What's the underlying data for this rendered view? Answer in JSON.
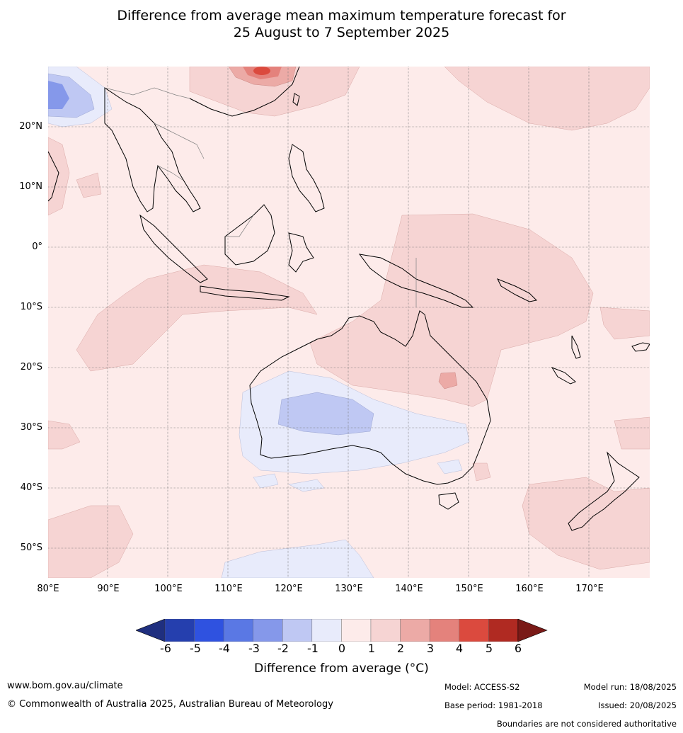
{
  "title_line1": "Difference from average mean maximum temperature forecast for",
  "title_line2": "25 August to 7 September 2025",
  "lat_labels": [
    "20°N",
    "10°N",
    "0°",
    "10°S",
    "20°S",
    "30°S",
    "40°S",
    "50°S"
  ],
  "lon_labels": [
    "80°E",
    "90°E",
    "100°E",
    "110°E",
    "120°E",
    "130°E",
    "140°E",
    "150°E",
    "160°E",
    "170°E"
  ],
  "colorbar": {
    "ticks": [
      "-6",
      "-5",
      "-4",
      "-3",
      "-2",
      "-1",
      "0",
      "1",
      "2",
      "3",
      "4",
      "5",
      "6"
    ],
    "colors": [
      "#1f2f7f",
      "#253fae",
      "#2f52e0",
      "#5a78e4",
      "#8598ea",
      "#bfc8f3",
      "#e8ebfb",
      "#fdebea",
      "#f6d4d3",
      "#ecaaa6",
      "#e4827c",
      "#db4a3e",
      "#b02a22",
      "#7a1a17"
    ],
    "label": "Difference from average (°C)"
  },
  "footer": {
    "website": "www.bom.gov.au/climate",
    "copyright": "© Commonwealth of Australia 2025, Australian Bureau of Meteorology",
    "model": "Model: ACCESS-S2",
    "base_period": "Base period: 1981-2018",
    "model_run": "Model run: 18/08/2025",
    "issued": "Issued: 20/08/2025",
    "disclaimer": "Boundaries are not considered authoritative"
  }
}
